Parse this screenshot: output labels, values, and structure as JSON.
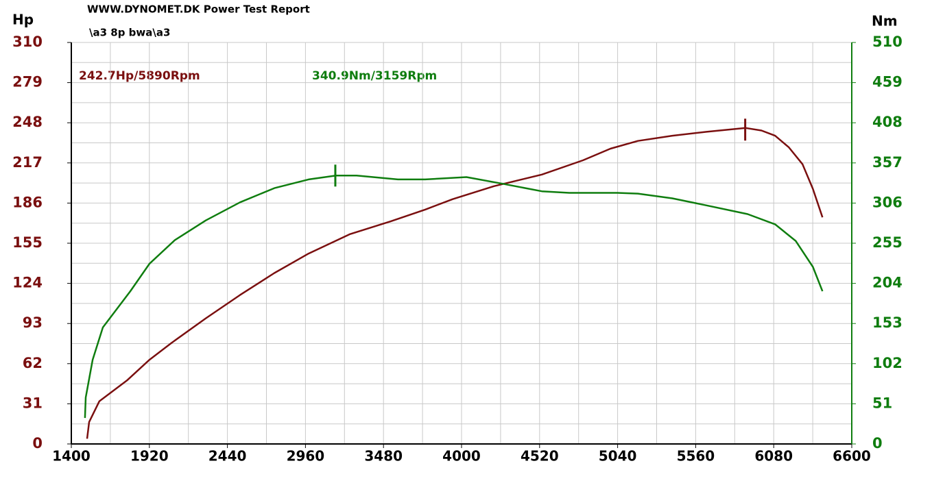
{
  "chart_data": {
    "type": "line",
    "title": "WWW.DYNOMET.DK  Power Test Report",
    "subtitle": "\\a3 8p bwa\\a3",
    "ylabel": "Hp",
    "y2label": "Nm",
    "xlim": [
      1400,
      6600
    ],
    "xticks": [
      1400,
      1920,
      2440,
      2960,
      3480,
      4000,
      4520,
      5040,
      5560,
      6080,
      6600
    ],
    "ylim": [
      0,
      310
    ],
    "yticks": [
      0,
      31,
      62,
      93,
      124,
      155,
      186,
      217,
      248,
      279,
      310
    ],
    "y2lim": [
      0,
      510
    ],
    "y2ticks": [
      0,
      51,
      102,
      153,
      204,
      255,
      306,
      357,
      408,
      459,
      510
    ],
    "grid": true,
    "minor_grid": true,
    "series": [
      {
        "name": "Hp",
        "color": "#7a0f0f",
        "axis": "y",
        "x": [
          1505,
          1519,
          1587,
          1770,
          1921,
          2067,
          2296,
          2524,
          2753,
          2981,
          3256,
          3530,
          3758,
          3941,
          4215,
          4535,
          4809,
          4992,
          5175,
          5404,
          5632,
          5893,
          5998,
          6089,
          6181,
          6272,
          6341,
          6405
        ],
        "values": [
          4,
          17,
          33,
          49,
          65,
          78,
          97,
          115,
          132,
          147,
          162,
          172,
          181,
          189,
          199,
          208,
          219,
          228,
          234,
          238,
          241,
          244,
          242,
          238,
          229,
          216,
          197,
          175
        ],
        "peak": {
          "x": 5890,
          "value": 242.7,
          "label": "242.7Hp/5890Rpm"
        }
      },
      {
        "name": "Nm",
        "color": "#0f7d0f",
        "axis": "y2",
        "x": [
          1491,
          1496,
          1542,
          1610,
          1793,
          1921,
          2090,
          2296,
          2524,
          2753,
          2981,
          3164,
          3301,
          3576,
          3758,
          4033,
          4261,
          4535,
          4718,
          5038,
          5175,
          5404,
          5632,
          5906,
          6089,
          6226,
          6341,
          6405
        ],
        "values": [
          33,
          59,
          107,
          148,
          194,
          229,
          259,
          284,
          307,
          325,
          336,
          341,
          341,
          336,
          336,
          339,
          331,
          321,
          319,
          319,
          318,
          312,
          303,
          292,
          279,
          258,
          225,
          194
        ],
        "peak": {
          "x": 3159,
          "value": 340.9,
          "label": "340.9Nm/3159Rpm"
        }
      }
    ]
  }
}
